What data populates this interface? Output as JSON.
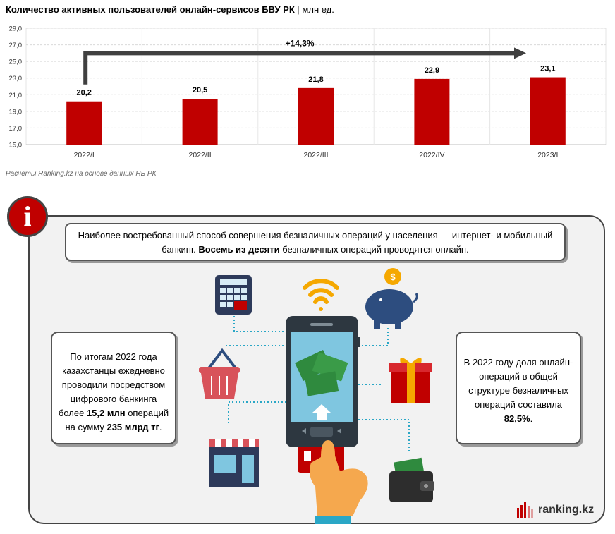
{
  "header": {
    "title": "Количество активных пользователей онлайн-сервисов БВУ РК",
    "separator": "|",
    "unit": "млн ед."
  },
  "chart_data": {
    "type": "bar",
    "categories": [
      "2022/I",
      "2022/II",
      "2022/III",
      "2022/IV",
      "2023/I"
    ],
    "values": [
      20.2,
      20.5,
      21.8,
      22.9,
      23.1
    ],
    "value_labels": [
      "20,2",
      "20,5",
      "21,8",
      "22,9",
      "23,1"
    ],
    "yticks": [
      "15,0",
      "17,0",
      "19,0",
      "21,0",
      "23,0",
      "25,0",
      "27,0",
      "29,0"
    ],
    "ylim": [
      15,
      29
    ],
    "growth_label": "+14,3%",
    "grid": true,
    "bar_color": "#c00000"
  },
  "source": "Расчёты Ranking.kz на основе данных НБ РК",
  "info_badge": "i",
  "top_text": {
    "part1": "Наиболее востребованный способ совершения безналичных операций у населения — интернет- и мобильный банкинг. ",
    "bold": "Восемь из десяти",
    "part2": " безналичных операций проводятся онлайн."
  },
  "left_text": {
    "part1": "По итогам 2022 года казахстанцы ежедневно проводили посредством цифрового банкинга более ",
    "bold1": "15,2 млн",
    "part2": " операций на сумму ",
    "bold2": "235 млрд тг",
    "part3": "."
  },
  "right_text": {
    "part1": "В 2022 году доля онлайн-операций в общей структуре безналичных операций составила ",
    "bold": "82,5%",
    "part2": "."
  },
  "coin_symbol": "$",
  "logo": "ranking.kz",
  "colors": {
    "accent": "#c00000",
    "arrow": "#404040",
    "dotted_line": "#2aa7c6"
  }
}
